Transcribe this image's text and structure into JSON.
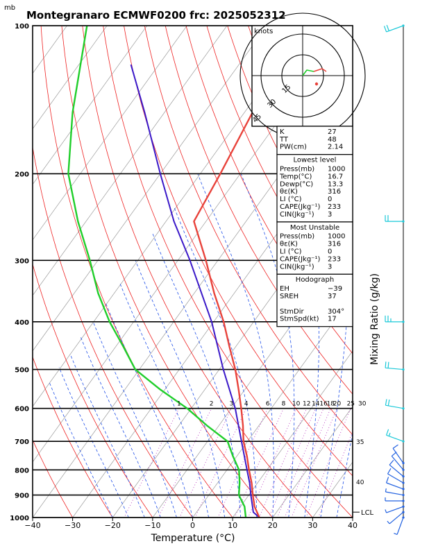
{
  "header": {
    "unit_label": "mb",
    "title": "Montegranaro ECMWF0200 frc: 2025052312"
  },
  "chart_data": {
    "type": "skew-t",
    "xlabel": "Temperature (°C)",
    "ylabel_right": "Mixing Ratio (g/kg)",
    "xlim": [
      -40,
      40
    ],
    "x_ticks": [
      -40,
      -30,
      -20,
      -10,
      0,
      10,
      20,
      30,
      40
    ],
    "ylim": [
      1000,
      100
    ],
    "pressure_levels": [
      100,
      200,
      300,
      400,
      500,
      600,
      700,
      800,
      900,
      1000
    ],
    "mixing_ratio_labels": [
      "1",
      "2",
      "3",
      "4",
      "6",
      "8",
      "10",
      "12",
      "14",
      "16",
      "18",
      "20",
      "25",
      "30"
    ],
    "theta_e_labels": [
      "35",
      "40"
    ],
    "lcl_label": "LCL",
    "lcl_pressure": 975,
    "temperature_profile": [
      {
        "p": 1000,
        "t": 16.7
      },
      {
        "p": 950,
        "t": 13.5
      },
      {
        "p": 900,
        "t": 11.0
      },
      {
        "p": 850,
        "t": 8.5
      },
      {
        "p": 800,
        "t": 5.5
      },
      {
        "p": 750,
        "t": 2.5
      },
      {
        "p": 700,
        "t": -1.0
      },
      {
        "p": 650,
        "t": -4.0
      },
      {
        "p": 600,
        "t": -7.5
      },
      {
        "p": 550,
        "t": -11.5
      },
      {
        "p": 500,
        "t": -16.0
      },
      {
        "p": 450,
        "t": -21.5
      },
      {
        "p": 400,
        "t": -27.5
      },
      {
        "p": 350,
        "t": -35.0
      },
      {
        "p": 300,
        "t": -43.0
      },
      {
        "p": 250,
        "t": -53.0
      },
      {
        "p": 200,
        "t": -55.0
      },
      {
        "p": 150,
        "t": -58.0
      },
      {
        "p": 120,
        "t": -62.0
      }
    ],
    "dewpoint_profile": [
      {
        "p": 1000,
        "t": 13.3
      },
      {
        "p": 950,
        "t": 11.0
      },
      {
        "p": 900,
        "t": 7.5
      },
      {
        "p": 850,
        "t": 5.5
      },
      {
        "p": 800,
        "t": 3.0
      },
      {
        "p": 750,
        "t": -1.0
      },
      {
        "p": 700,
        "t": -5.0
      },
      {
        "p": 650,
        "t": -13.0
      },
      {
        "p": 600,
        "t": -21.0
      },
      {
        "p": 550,
        "t": -31.0
      },
      {
        "p": 500,
        "t": -41.0
      },
      {
        "p": 450,
        "t": -48.0
      },
      {
        "p": 400,
        "t": -56.0
      },
      {
        "p": 350,
        "t": -64.0
      },
      {
        "p": 300,
        "t": -72.0
      },
      {
        "p": 250,
        "t": -82.0
      },
      {
        "p": 200,
        "t": -93.0
      },
      {
        "p": 150,
        "t": -103.0
      },
      {
        "p": 100,
        "t": -115.0
      }
    ],
    "parcel_profile": [
      {
        "p": 1000,
        "t": 16.7
      },
      {
        "p": 975,
        "t": 14.2
      },
      {
        "p": 950,
        "t": 13.0
      },
      {
        "p": 900,
        "t": 10.5
      },
      {
        "p": 850,
        "t": 8.0
      },
      {
        "p": 800,
        "t": 5.0
      },
      {
        "p": 700,
        "t": -1.5
      },
      {
        "p": 600,
        "t": -9.0
      },
      {
        "p": 500,
        "t": -19.0
      },
      {
        "p": 400,
        "t": -30.5
      },
      {
        "p": 300,
        "t": -47.0
      },
      {
        "p": 250,
        "t": -58.0
      },
      {
        "p": 200,
        "t": -70.0
      },
      {
        "p": 150,
        "t": -85.0
      },
      {
        "p": 120,
        "t": -97.0
      }
    ],
    "wind_barbs": [
      {
        "p": 1000,
        "dir": 200,
        "spd": 5
      },
      {
        "p": 975,
        "dir": 230,
        "spd": 5
      },
      {
        "p": 950,
        "dir": 250,
        "spd": 5
      },
      {
        "p": 925,
        "dir": 270,
        "spd": 5
      },
      {
        "p": 900,
        "dir": 280,
        "spd": 5
      },
      {
        "p": 875,
        "dir": 290,
        "spd": 10
      },
      {
        "p": 850,
        "dir": 300,
        "spd": 10
      },
      {
        "p": 825,
        "dir": 310,
        "spd": 10
      },
      {
        "p": 800,
        "dir": 320,
        "spd": 10
      },
      {
        "p": 775,
        "dir": 325,
        "spd": 10
      },
      {
        "p": 700,
        "dir": 290,
        "spd": 15
      },
      {
        "p": 600,
        "dir": 280,
        "spd": 20
      },
      {
        "p": 500,
        "dir": 275,
        "spd": 20
      },
      {
        "p": 400,
        "dir": 270,
        "spd": 25
      },
      {
        "p": 250,
        "dir": 270,
        "spd": 20
      },
      {
        "p": 100,
        "dir": 250,
        "spd": 20
      }
    ],
    "hodograph": {
      "label": "knots",
      "ring_labels": [
        "15",
        "30",
        "45"
      ],
      "points": [
        [
          0,
          0
        ],
        [
          3,
          4
        ],
        [
          8,
          3
        ],
        [
          14,
          5
        ],
        [
          17,
          3
        ]
      ]
    }
  },
  "indices": {
    "basic": [
      {
        "label": "K",
        "value": "27"
      },
      {
        "label": "TT",
        "value": "48"
      },
      {
        "label": "PW(cm)",
        "value": "2.14"
      }
    ],
    "lowest_level": {
      "title": "Lowest level",
      "rows": [
        {
          "label": "Press(mb)",
          "value": "1000"
        },
        {
          "label": "Temp(°C)",
          "value": "16.7"
        },
        {
          "label": "Dewp(°C)",
          "value": "13.3"
        },
        {
          "label": "θε(K)",
          "value": "316"
        },
        {
          "label": "LI (°C)",
          "value": "0"
        },
        {
          "label": "CAPE(Jkg⁻¹)",
          "value": "233"
        },
        {
          "label": "CIN(Jkg⁻¹)",
          "value": "3"
        }
      ]
    },
    "most_unstable": {
      "title": "Most Unstable",
      "rows": [
        {
          "label": "Press(mb)",
          "value": "1000"
        },
        {
          "label": "θε(K)",
          "value": "316"
        },
        {
          "label": "LI (°C)",
          "value": "0"
        },
        {
          "label": "CAPE(Jkg⁻¹)",
          "value": "233"
        },
        {
          "label": "CIN(Jkg⁻¹)",
          "value": "3"
        }
      ]
    },
    "hodograph": {
      "title": "Hodograph",
      "rows": [
        {
          "label": "EH",
          "value": "−39"
        },
        {
          "label": "SREH",
          "value": "37"
        },
        {
          "label": "",
          "value": ""
        },
        {
          "label": "StmDir",
          "value": "304°"
        },
        {
          "label": "StmSpd(kt)",
          "value": "17"
        }
      ]
    }
  },
  "colors": {
    "temperature": "#e8423a",
    "dewpoint": "#1fce2a",
    "parcel": "#3a18c8",
    "isotherm": "#9a9a9a",
    "dry_adiabat": "#ee2020",
    "moist_adiabat": "#1f4fe8",
    "mixing_ratio": "#b020b8",
    "barb": "#19c8d8"
  }
}
